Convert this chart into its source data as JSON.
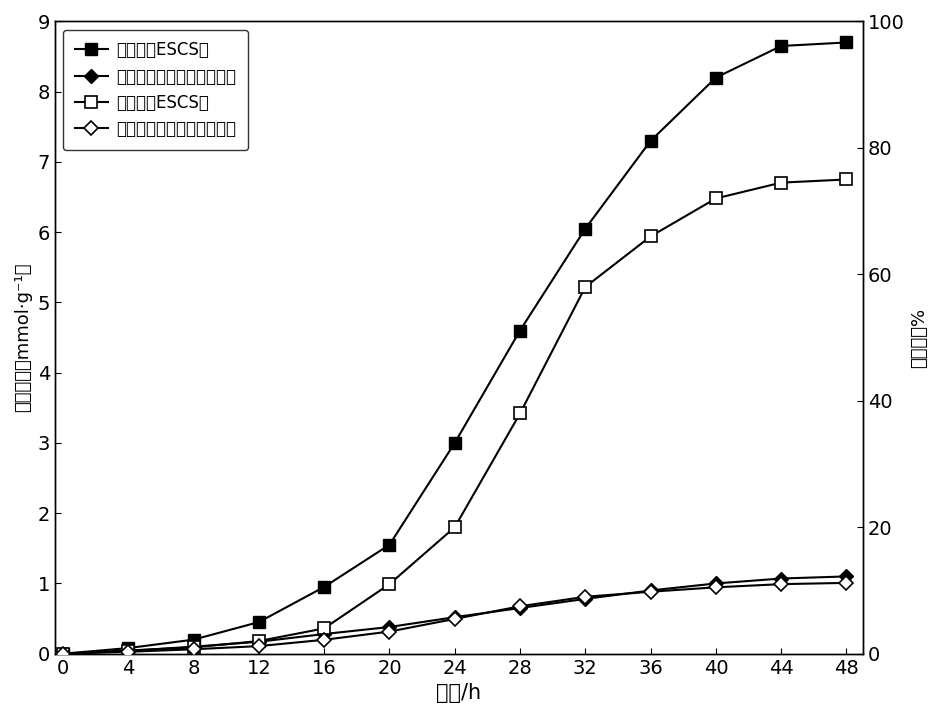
{
  "time": [
    0,
    4,
    8,
    12,
    16,
    20,
    24,
    28,
    32,
    36,
    40,
    44,
    48
  ],
  "h2_escs": [
    0.0,
    0.08,
    0.2,
    0.45,
    0.95,
    1.55,
    3.0,
    4.6,
    6.05,
    7.3,
    8.2,
    8.65,
    8.7
  ],
  "h2_untreated": [
    0.0,
    0.04,
    0.1,
    0.17,
    0.28,
    0.38,
    0.52,
    0.65,
    0.78,
    0.9,
    1.0,
    1.07,
    1.1
  ],
  "deg_escs": [
    0.0,
    0.5,
    1.0,
    2.0,
    4.0,
    11.0,
    20.0,
    38.0,
    58.0,
    66.0,
    72.0,
    74.5,
    75.0
  ],
  "deg_untreated": [
    0.0,
    0.3,
    0.7,
    1.2,
    2.2,
    3.5,
    5.5,
    7.5,
    9.0,
    9.8,
    10.5,
    11.0,
    11.2
  ],
  "ylabel_left": "产氢率／（mmol·g⁻¹）",
  "ylabel_right": "降解率／%",
  "xlabel": "时间/h",
  "legend1": "产氢率（ESCS）",
  "legend2": "产氢率（未处理玉米秸秆）",
  "legend3": "降解率（ESCS）",
  "legend4": "降解率（未处理玉米秸秆）",
  "ylim_left": [
    0,
    9
  ],
  "ylim_right": [
    0,
    100
  ],
  "xlim": [
    -0.5,
    49
  ],
  "xticks": [
    0,
    4,
    8,
    12,
    16,
    20,
    24,
    28,
    32,
    36,
    40,
    44,
    48
  ],
  "yticks_left": [
    0,
    1,
    2,
    3,
    4,
    5,
    6,
    7,
    8,
    9
  ],
  "yticks_right": [
    0,
    20,
    40,
    60,
    80,
    100
  ],
  "bg_color": "#ffffff"
}
